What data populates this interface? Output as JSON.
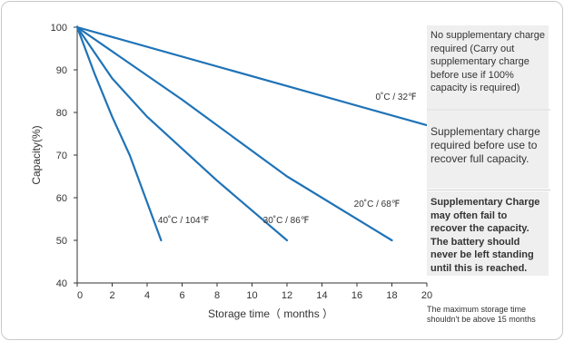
{
  "chart_data": {
    "type": "line",
    "xlabel": "Storage time（ months ）",
    "ylabel": "Capacity(%)",
    "xlim": [
      0,
      20
    ],
    "ylim": [
      40,
      100
    ],
    "x_ticks": [
      "0",
      "2",
      "4",
      "6",
      "8",
      "10",
      "12",
      "14",
      "16",
      "18",
      "20"
    ],
    "y_ticks": [
      "100",
      "90",
      "80",
      "70",
      "60",
      "50",
      "40"
    ],
    "grid": false,
    "series": [
      {
        "name": "0˚C / 32℉",
        "x": [
          0,
          20
        ],
        "y": [
          100,
          77
        ]
      },
      {
        "name": "20˚C / 68℉",
        "x": [
          0,
          6,
          12,
          18
        ],
        "y": [
          100,
          83,
          65,
          50
        ]
      },
      {
        "name": "30˚C / 86℉",
        "x": [
          0,
          2,
          4,
          8,
          12
        ],
        "y": [
          100,
          88,
          79,
          64,
          50
        ]
      },
      {
        "name": "40˚C / 104℉",
        "x": [
          0,
          1,
          2,
          3,
          4.8
        ],
        "y": [
          100,
          89,
          79,
          70,
          50
        ]
      }
    ],
    "colors": {
      "line": "#1f73b7",
      "axis": "#333333",
      "zone_bg": "#efefef"
    }
  },
  "zones": [
    "No supplementary charge required (Carry out supplementary charge before use if 100% capacity is required)",
    "Supplementary charge required before use to recover full capacity.",
    "Supplementary Charge may often fail to recover the capacity. The battery should never be left standing until this is reached."
  ],
  "storage_note": "The maximum storage time shouldn't be above 15 months"
}
